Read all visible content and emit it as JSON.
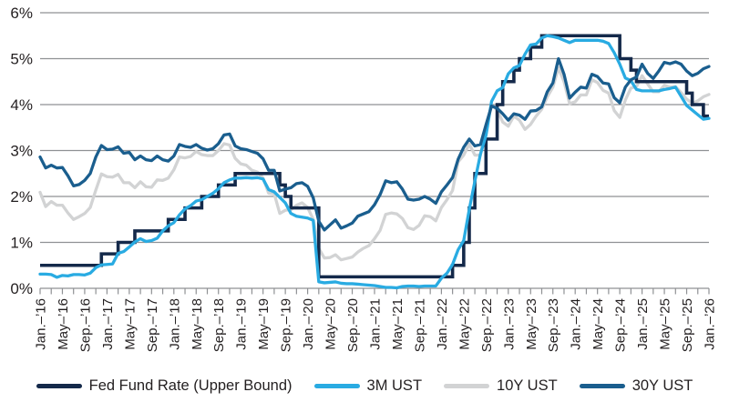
{
  "colors": {
    "background": "#FFFFFF",
    "grid": "#8F9194",
    "axis_text": "#231F20",
    "fed_navy": "#14294A",
    "ust_3m_cyan": "#29ABE2",
    "ust_10y_gray": "#D2D3D4",
    "ust_30y_blue": "#1A5E8E"
  },
  "chart_data": {
    "type": "line",
    "title": "",
    "x_unit": "monthly",
    "x_range_label": "Jan 2016 to Jan 2026",
    "x_tick_labels": [
      "Jan.–’16",
      "May–’16",
      "Sep.–’16",
      "Jan.–’17",
      "May–’17",
      "Sep.–’17",
      "Jan.–’18",
      "May–’18",
      "Sep.–’18",
      "Jan.–’19",
      "May–’19",
      "Sep.–’19",
      "Jan.–’20",
      "May–’20",
      "Sep.–’20",
      "Jan.–’21",
      "May–’21",
      "Sep.–’21",
      "Jan.–’22",
      "May–’22",
      "Sep.–’22",
      "Jan.–’23",
      "May–’23",
      "Sep.–’23",
      "Jan.–’24",
      "May–’24",
      "Sep.–’24",
      "Jan.–’25",
      "May–’25",
      "Sep.–’25",
      "Jan.–’26"
    ],
    "months_per_label": 4,
    "months_per_tickmark": 2,
    "y_tick_labels": [
      "0%",
      "1%",
      "2%",
      "3%",
      "4%",
      "5%",
      "6%"
    ],
    "ylim": [
      0,
      6
    ],
    "grid": "horizontal",
    "legend_position": "bottom",
    "series": [
      {
        "name": "Fed Fund Rate (Upper Bound)",
        "color": "#14294A",
        "style": "step",
        "width": 3.6,
        "z": 2,
        "values": [
          0.5,
          0.5,
          0.5,
          0.5,
          0.5,
          0.5,
          0.5,
          0.5,
          0.5,
          0.5,
          0.5,
          0.75,
          0.75,
          0.75,
          1.0,
          1.0,
          1.0,
          1.25,
          1.25,
          1.25,
          1.25,
          1.25,
          1.25,
          1.5,
          1.5,
          1.5,
          1.75,
          1.75,
          1.75,
          2.0,
          2.0,
          2.0,
          2.25,
          2.25,
          2.25,
          2.5,
          2.5,
          2.5,
          2.5,
          2.5,
          2.5,
          2.5,
          2.5,
          2.25,
          2.0,
          1.75,
          1.75,
          1.75,
          1.75,
          1.75,
          0.25,
          0.25,
          0.25,
          0.25,
          0.25,
          0.25,
          0.25,
          0.25,
          0.25,
          0.25,
          0.25,
          0.25,
          0.25,
          0.25,
          0.25,
          0.25,
          0.25,
          0.25,
          0.25,
          0.25,
          0.25,
          0.25,
          0.25,
          0.25,
          0.5,
          0.5,
          1.0,
          1.75,
          2.5,
          2.5,
          3.25,
          3.25,
          4.0,
          4.5,
          4.5,
          4.75,
          5.0,
          5.0,
          5.25,
          5.25,
          5.5,
          5.5,
          5.5,
          5.5,
          5.5,
          5.5,
          5.5,
          5.5,
          5.5,
          5.5,
          5.5,
          5.5,
          5.5,
          5.5,
          5.0,
          5.0,
          4.75,
          4.5,
          4.5,
          4.5,
          4.5,
          4.5,
          4.5,
          4.5,
          4.5,
          4.5,
          4.25,
          4.0,
          4.0,
          3.75,
          3.75
        ]
      },
      {
        "name": "3M UST",
        "color": "#29ABE2",
        "style": "line",
        "width": 3.3,
        "z": 3,
        "values": [
          0.31,
          0.31,
          0.3,
          0.24,
          0.28,
          0.27,
          0.3,
          0.3,
          0.29,
          0.33,
          0.45,
          0.51,
          0.52,
          0.53,
          0.76,
          0.8,
          0.9,
          1.01,
          1.08,
          1.02,
          1.04,
          1.09,
          1.25,
          1.36,
          1.43,
          1.6,
          1.73,
          1.8,
          1.9,
          1.93,
          2.0,
          2.07,
          2.17,
          2.3,
          2.36,
          2.4,
          2.4,
          2.41,
          2.4,
          2.41,
          2.38,
          2.15,
          2.1,
          1.98,
          1.86,
          1.63,
          1.57,
          1.55,
          1.53,
          1.48,
          0.14,
          0.12,
          0.13,
          0.14,
          0.11,
          0.1,
          0.1,
          0.09,
          0.08,
          0.07,
          0.06,
          0.04,
          0.02,
          0.02,
          0.01,
          0.04,
          0.05,
          0.05,
          0.04,
          0.05,
          0.05,
          0.05,
          0.22,
          0.33,
          0.52,
          0.84,
          1.04,
          1.72,
          2.33,
          2.92,
          3.33,
          4.07,
          4.3,
          4.37,
          4.67,
          4.8,
          4.85,
          5.1,
          5.3,
          5.32,
          5.45,
          5.5,
          5.48,
          5.45,
          5.4,
          5.35,
          5.4,
          5.4,
          5.4,
          5.4,
          5.4,
          5.38,
          5.33,
          5.13,
          4.88,
          4.58,
          4.52,
          4.33,
          4.3,
          4.3,
          4.3,
          4.3,
          4.33,
          4.35,
          4.38,
          4.18,
          3.98,
          3.88,
          3.78,
          3.68,
          3.7
        ]
      },
      {
        "name": "10Y UST",
        "color": "#D2D3D4",
        "style": "line",
        "width": 3.3,
        "z": 1,
        "values": [
          2.09,
          1.78,
          1.89,
          1.81,
          1.81,
          1.64,
          1.5,
          1.56,
          1.63,
          1.76,
          2.14,
          2.49,
          2.43,
          2.42,
          2.48,
          2.3,
          2.3,
          2.19,
          2.32,
          2.21,
          2.2,
          2.36,
          2.35,
          2.4,
          2.58,
          2.86,
          2.84,
          2.87,
          2.98,
          2.91,
          2.89,
          2.89,
          3.0,
          3.15,
          3.12,
          2.83,
          2.71,
          2.68,
          2.57,
          2.53,
          2.4,
          2.07,
          2.06,
          1.63,
          1.7,
          1.71,
          1.81,
          1.86,
          1.76,
          1.5,
          0.87,
          0.66,
          0.67,
          0.73,
          0.62,
          0.65,
          0.68,
          0.79,
          0.87,
          0.93,
          1.08,
          1.26,
          1.61,
          1.64,
          1.62,
          1.52,
          1.32,
          1.28,
          1.37,
          1.58,
          1.56,
          1.47,
          1.76,
          1.93,
          2.13,
          2.75,
          2.9,
          3.14,
          2.9,
          2.9,
          3.52,
          3.98,
          3.89,
          3.62,
          3.53,
          3.75,
          3.66,
          3.46,
          3.57,
          3.75,
          3.9,
          4.17,
          4.38,
          4.8,
          4.5,
          4.02,
          4.06,
          4.21,
          4.21,
          4.54,
          4.48,
          4.31,
          4.25,
          3.87,
          3.72,
          4.1,
          4.36,
          4.39,
          4.63,
          4.45,
          4.28,
          4.28,
          4.42,
          4.38,
          4.39,
          4.26,
          4.12,
          4.03,
          4.08,
          4.17,
          4.22
        ]
      },
      {
        "name": "30Y UST",
        "color": "#1A5E8E",
        "style": "line",
        "width": 3.3,
        "z": 4,
        "values": [
          2.86,
          2.62,
          2.68,
          2.62,
          2.63,
          2.45,
          2.23,
          2.26,
          2.35,
          2.5,
          2.86,
          3.11,
          3.02,
          3.03,
          3.08,
          2.94,
          2.96,
          2.8,
          2.88,
          2.8,
          2.78,
          2.88,
          2.8,
          2.77,
          2.88,
          3.13,
          3.09,
          3.07,
          3.13,
          3.05,
          3.01,
          3.04,
          3.15,
          3.34,
          3.36,
          3.1,
          3.04,
          3.02,
          2.98,
          2.94,
          2.82,
          2.57,
          2.57,
          2.12,
          2.16,
          2.19,
          2.28,
          2.3,
          2.22,
          1.97,
          1.46,
          1.27,
          1.38,
          1.49,
          1.31,
          1.36,
          1.42,
          1.57,
          1.62,
          1.67,
          1.82,
          2.04,
          2.34,
          2.3,
          2.32,
          2.16,
          1.94,
          1.92,
          1.94,
          2.0,
          1.94,
          1.85,
          2.1,
          2.25,
          2.41,
          2.81,
          3.07,
          3.25,
          3.1,
          3.13,
          3.56,
          3.97,
          3.92,
          3.8,
          3.66,
          3.8,
          3.77,
          3.68,
          3.86,
          3.87,
          3.95,
          4.28,
          4.47,
          5.0,
          4.66,
          4.14,
          4.27,
          4.38,
          4.36,
          4.66,
          4.61,
          4.47,
          4.45,
          4.15,
          4.04,
          4.38,
          4.54,
          4.6,
          4.88,
          4.68,
          4.57,
          4.73,
          4.92,
          4.89,
          4.93,
          4.88,
          4.73,
          4.63,
          4.68,
          4.78,
          4.83
        ]
      }
    ]
  }
}
